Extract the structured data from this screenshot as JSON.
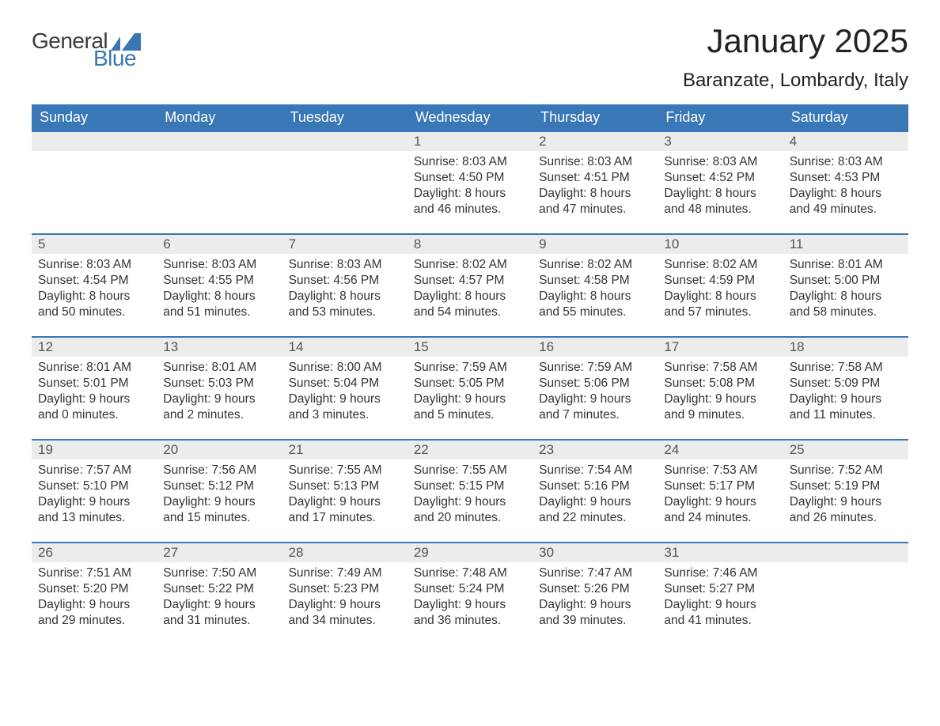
{
  "logo": {
    "general": "General",
    "blue": "Blue"
  },
  "colors": {
    "header_bg": "#3a77b6",
    "header_text": "#ffffff",
    "daynum_bg": "#ececec",
    "border": "#3a77b6",
    "body_text": "#333333",
    "title_text": "#222222"
  },
  "title": "January 2025",
  "location": "Baranzate, Lombardy, Italy",
  "day_headers": [
    "Sunday",
    "Monday",
    "Tuesday",
    "Wednesday",
    "Thursday",
    "Friday",
    "Saturday"
  ],
  "weeks": [
    [
      null,
      null,
      null,
      {
        "n": "1",
        "sr": "8:03 AM",
        "ss": "4:50 PM",
        "dh": "8",
        "dm": "46"
      },
      {
        "n": "2",
        "sr": "8:03 AM",
        "ss": "4:51 PM",
        "dh": "8",
        "dm": "47"
      },
      {
        "n": "3",
        "sr": "8:03 AM",
        "ss": "4:52 PM",
        "dh": "8",
        "dm": "48"
      },
      {
        "n": "4",
        "sr": "8:03 AM",
        "ss": "4:53 PM",
        "dh": "8",
        "dm": "49"
      }
    ],
    [
      {
        "n": "5",
        "sr": "8:03 AM",
        "ss": "4:54 PM",
        "dh": "8",
        "dm": "50"
      },
      {
        "n": "6",
        "sr": "8:03 AM",
        "ss": "4:55 PM",
        "dh": "8",
        "dm": "51"
      },
      {
        "n": "7",
        "sr": "8:03 AM",
        "ss": "4:56 PM",
        "dh": "8",
        "dm": "53"
      },
      {
        "n": "8",
        "sr": "8:02 AM",
        "ss": "4:57 PM",
        "dh": "8",
        "dm": "54"
      },
      {
        "n": "9",
        "sr": "8:02 AM",
        "ss": "4:58 PM",
        "dh": "8",
        "dm": "55"
      },
      {
        "n": "10",
        "sr": "8:02 AM",
        "ss": "4:59 PM",
        "dh": "8",
        "dm": "57"
      },
      {
        "n": "11",
        "sr": "8:01 AM",
        "ss": "5:00 PM",
        "dh": "8",
        "dm": "58"
      }
    ],
    [
      {
        "n": "12",
        "sr": "8:01 AM",
        "ss": "5:01 PM",
        "dh": "9",
        "dm": "0"
      },
      {
        "n": "13",
        "sr": "8:01 AM",
        "ss": "5:03 PM",
        "dh": "9",
        "dm": "2"
      },
      {
        "n": "14",
        "sr": "8:00 AM",
        "ss": "5:04 PM",
        "dh": "9",
        "dm": "3"
      },
      {
        "n": "15",
        "sr": "7:59 AM",
        "ss": "5:05 PM",
        "dh": "9",
        "dm": "5"
      },
      {
        "n": "16",
        "sr": "7:59 AM",
        "ss": "5:06 PM",
        "dh": "9",
        "dm": "7"
      },
      {
        "n": "17",
        "sr": "7:58 AM",
        "ss": "5:08 PM",
        "dh": "9",
        "dm": "9"
      },
      {
        "n": "18",
        "sr": "7:58 AM",
        "ss": "5:09 PM",
        "dh": "9",
        "dm": "11"
      }
    ],
    [
      {
        "n": "19",
        "sr": "7:57 AM",
        "ss": "5:10 PM",
        "dh": "9",
        "dm": "13"
      },
      {
        "n": "20",
        "sr": "7:56 AM",
        "ss": "5:12 PM",
        "dh": "9",
        "dm": "15"
      },
      {
        "n": "21",
        "sr": "7:55 AM",
        "ss": "5:13 PM",
        "dh": "9",
        "dm": "17"
      },
      {
        "n": "22",
        "sr": "7:55 AM",
        "ss": "5:15 PM",
        "dh": "9",
        "dm": "20"
      },
      {
        "n": "23",
        "sr": "7:54 AM",
        "ss": "5:16 PM",
        "dh": "9",
        "dm": "22"
      },
      {
        "n": "24",
        "sr": "7:53 AM",
        "ss": "5:17 PM",
        "dh": "9",
        "dm": "24"
      },
      {
        "n": "25",
        "sr": "7:52 AM",
        "ss": "5:19 PM",
        "dh": "9",
        "dm": "26"
      }
    ],
    [
      {
        "n": "26",
        "sr": "7:51 AM",
        "ss": "5:20 PM",
        "dh": "9",
        "dm": "29"
      },
      {
        "n": "27",
        "sr": "7:50 AM",
        "ss": "5:22 PM",
        "dh": "9",
        "dm": "31"
      },
      {
        "n": "28",
        "sr": "7:49 AM",
        "ss": "5:23 PM",
        "dh": "9",
        "dm": "34"
      },
      {
        "n": "29",
        "sr": "7:48 AM",
        "ss": "5:24 PM",
        "dh": "9",
        "dm": "36"
      },
      {
        "n": "30",
        "sr": "7:47 AM",
        "ss": "5:26 PM",
        "dh": "9",
        "dm": "39"
      },
      {
        "n": "31",
        "sr": "7:46 AM",
        "ss": "5:27 PM",
        "dh": "9",
        "dm": "41"
      },
      null
    ]
  ],
  "labels": {
    "sunrise": "Sunrise: ",
    "sunset": "Sunset: ",
    "daylight_prefix": "Daylight: ",
    "hours_word": " hours",
    "and_word": "and ",
    "minutes_word": " minutes."
  }
}
